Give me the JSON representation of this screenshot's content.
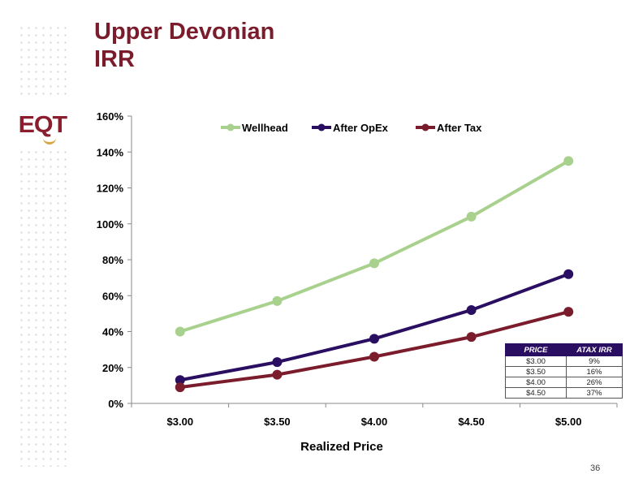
{
  "title": {
    "line1": "Upper Devonian",
    "line2": "IRR"
  },
  "logo": {
    "text": "EQT",
    "colors": {
      "letters": "#8a1e2e",
      "accent": "#d9a640"
    }
  },
  "page_number": "36",
  "table": {
    "headers": [
      "PRICE",
      "ATAX IRR"
    ],
    "rows": [
      [
        "$3.00",
        "9%"
      ],
      [
        "$3.50",
        "16%"
      ],
      [
        "$4.00",
        "26%"
      ],
      [
        "$4.50",
        "37%"
      ]
    ]
  },
  "chart_data": {
    "type": "line",
    "xlabel": "Realized Price",
    "ylabel": "",
    "categories": [
      "$3.00",
      "$3.50",
      "$4.00",
      "$4.50",
      "$5.00"
    ],
    "y_ticks": [
      "0%",
      "20%",
      "40%",
      "60%",
      "80%",
      "100%",
      "120%",
      "140%",
      "160%"
    ],
    "ylim": [
      0,
      160
    ],
    "grid": false,
    "legend": "top-center",
    "series": [
      {
        "name": "Wellhead",
        "color": "#a9d18e",
        "values": [
          40,
          57,
          78,
          104,
          135
        ]
      },
      {
        "name": "After OpEx",
        "color": "#2a0e62",
        "values": [
          13,
          23,
          36,
          52,
          72
        ]
      },
      {
        "name": "After Tax",
        "color": "#7b1c2c",
        "values": [
          9,
          16,
          26,
          37,
          51
        ]
      }
    ]
  }
}
